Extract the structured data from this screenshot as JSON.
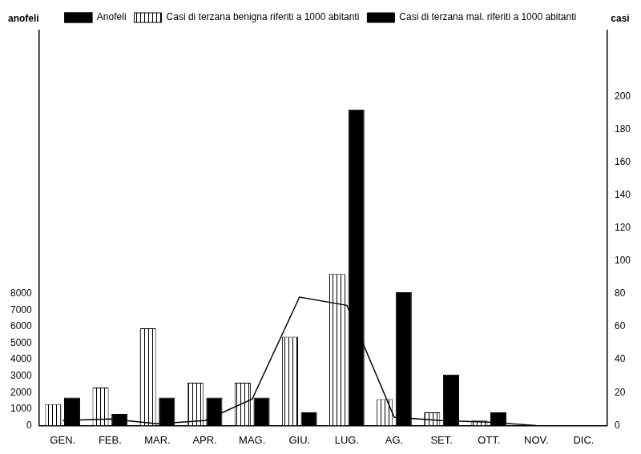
{
  "chart_data": {
    "type": "bar",
    "categories": [
      "GEN.",
      "FEB.",
      "MAR.",
      "APR.",
      "MAG.",
      "GIU.",
      "LUG.",
      "AG.",
      "SET.",
      "OTT.",
      "NOV.",
      "DIC."
    ],
    "series": [
      {
        "name": "Anofeli",
        "type": "line",
        "color": "#000000",
        "marker": "none",
        "line_style": "solid",
        "values": [
          300,
          400,
          100,
          300,
          1600,
          7800,
          7300,
          500,
          300,
          200,
          0,
          null
        ]
      },
      {
        "name": "Casi di terzana benigna riferiti a 1000 abitanti",
        "type": "bar",
        "color": "#ffffff",
        "axis": "y2",
        "values": [
          13,
          23,
          59,
          26,
          26,
          54,
          92,
          16,
          8,
          3,
          0,
          0
        ]
      },
      {
        "name": "Casi di terzana mal. riferiti a 1000 abitanti",
        "type": "bar",
        "color": "#000000",
        "axis": "y2",
        "values": [
          17,
          7,
          17,
          17,
          17,
          8,
          192,
          81,
          31,
          8,
          0,
          0
        ]
      }
    ],
    "ylabel": "anofeli",
    "y2label": "casi",
    "ylim": [
      0,
      24000
    ],
    "yticks": [
      0,
      1000,
      2000,
      3000,
      4000,
      5000,
      6000,
      7000,
      8000
    ],
    "y2lim": [
      0,
      240
    ],
    "y2ticks": [
      0,
      20,
      40,
      60,
      80,
      100,
      120,
      140,
      160,
      180,
      200
    ],
    "grid": false,
    "legend": "top"
  }
}
